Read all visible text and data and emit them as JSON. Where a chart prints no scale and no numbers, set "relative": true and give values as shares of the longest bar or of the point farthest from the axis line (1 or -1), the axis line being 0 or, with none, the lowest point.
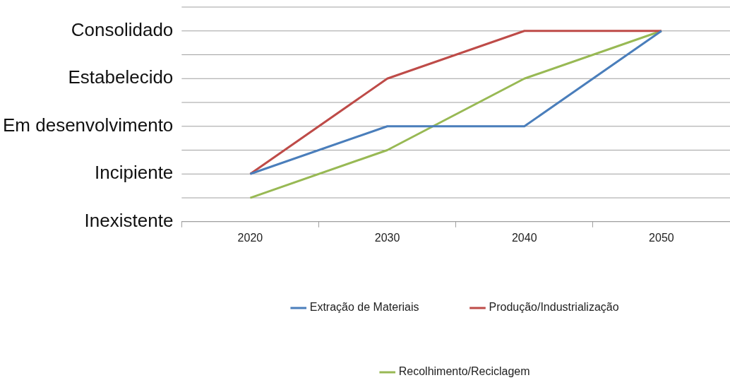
{
  "chart_data": {
    "type": "line",
    "categories": [
      "2020",
      "2030",
      "2040",
      "2050"
    ],
    "series": [
      {
        "name": "Extração de Materiais",
        "color": "#4a7ebb",
        "values": [
          0.25,
          0.5,
          0.5,
          1
        ]
      },
      {
        "name": "Produção/Industrialização",
        "color": "#be4b48",
        "values": [
          0.25,
          0.75,
          1,
          1
        ]
      },
      {
        "name": "Recolhimento/Reciclagem",
        "color": "#98b954",
        "values": [
          0.125,
          0.375,
          0.75,
          1
        ]
      }
    ],
    "relative": true,
    "ref_lines": [
      {
        "axis": "y",
        "value": 0,
        "label": "Inexistente",
        "color": "#a0a0a0"
      },
      {
        "axis": "y",
        "value": 0.125,
        "label": null,
        "color": "#a0a0a0"
      },
      {
        "axis": "y",
        "value": 0.25,
        "label": "Incipiente",
        "color": "#a0a0a0"
      },
      {
        "axis": "y",
        "value": 0.375,
        "label": null,
        "color": "#a0a0a0"
      },
      {
        "axis": "y",
        "value": 0.5,
        "label": "Em desenvolvimento",
        "color": "#a0a0a0"
      },
      {
        "axis": "y",
        "value": 0.625,
        "label": null,
        "color": "#a0a0a0"
      },
      {
        "axis": "y",
        "value": 0.75,
        "label": "Estabelecido",
        "color": "#a0a0a0"
      },
      {
        "axis": "y",
        "value": 0.875,
        "label": null,
        "color": "#a0a0a0"
      },
      {
        "axis": "y",
        "value": 1,
        "label": "Consolidado",
        "color": "#a0a0a0"
      },
      {
        "axis": "y",
        "value": 1.125,
        "label": null,
        "color": "#a0a0a0"
      }
    ],
    "legend": "bottom",
    "marker": "none",
    "line_style": "solid"
  }
}
